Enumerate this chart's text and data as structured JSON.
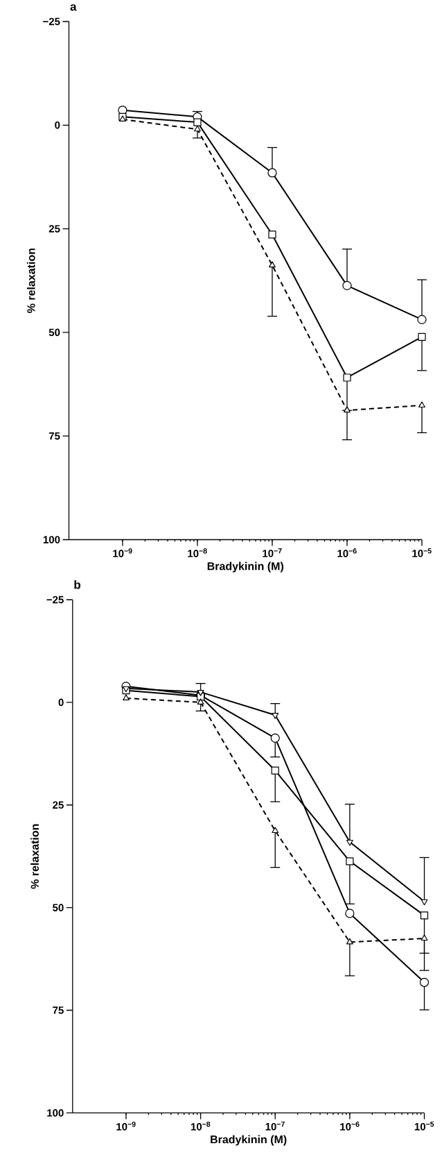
{
  "chart_data": [
    {
      "type": "line",
      "title": "a",
      "xlabel": "Bradykinin (M)",
      "ylabel": "% relaxation",
      "log": "x",
      "x": [
        1e-09,
        1e-08,
        1e-07,
        1e-06,
        1e-05
      ],
      "xlim": [
        1.92e-10,
        1e-05
      ],
      "xticks": [
        {
          "value": 1e-09,
          "label": "10$^{−9}$"
        },
        {
          "value": 1e-08,
          "label": "10$^{−8}$"
        },
        {
          "value": 1e-07,
          "label": "10$^{−7}$"
        },
        {
          "value": 1e-06,
          "label": "10$^{−6}$"
        },
        {
          "value": 1e-05,
          "label": "10$^{−5}$"
        }
      ],
      "ylim": [
        100,
        -25
      ],
      "yticks": [
        {
          "value": -25,
          "label": "−25"
        },
        0,
        25,
        50,
        75,
        100
      ],
      "series": [
        {
          "color": "#000000",
          "marker": "circle",
          "line_style": "solid",
          "values": [
            -3.6,
            -2.0,
            11.5,
            38.7,
            46.9
          ],
          "errors": [
            null,
            [
              -3.3,
              -2.0
            ],
            [
              5.4,
              11.5
            ],
            [
              29.9,
              38.7
            ],
            [
              37.3,
              46.9
            ]
          ]
        },
        {
          "color": "#000000",
          "marker": "square",
          "line_style": "solid",
          "values": [
            -2.0,
            -0.7,
            26.4,
            60.9,
            51.1
          ],
          "errors": [
            null,
            null,
            null,
            [
              60.9,
              68.8
            ],
            [
              51.1,
              59.2
            ]
          ]
        },
        {
          "color": "#000000",
          "marker": "triangle",
          "line_style": "dashed",
          "values": [
            -1.4,
            1.0,
            33.8,
            68.8,
            67.6
          ],
          "errors": [
            null,
            [
              1.0,
              3.1
            ],
            [
              33.8,
              46.1
            ],
            [
              68.8,
              75.9
            ],
            [
              67.6,
              74.2
            ]
          ]
        }
      ]
    },
    {
      "type": "line",
      "title": "b",
      "xlabel": "Bradykinin (M)",
      "ylabel": "% relaxation",
      "log": "x",
      "x": [
        1e-09,
        1e-08,
        1e-07,
        1e-06,
        1e-05
      ],
      "xlim": [
        1.92e-10,
        1e-05
      ],
      "xticks": [
        {
          "value": 1e-09,
          "label": "10$^{−9}$"
        },
        {
          "value": 1e-08,
          "label": "10$^{−8}$"
        },
        {
          "value": 1e-07,
          "label": "10$^{−7}$"
        },
        {
          "value": 1e-06,
          "label": "10$^{−6}$"
        },
        {
          "value": 1e-05,
          "label": "10$^{−5}$"
        }
      ],
      "ylim": [
        100,
        -25
      ],
      "yticks": [
        {
          "value": -25,
          "label": "−25"
        },
        0,
        25,
        50,
        75,
        100
      ],
      "series": [
        {
          "color": "#000000",
          "marker": "circle",
          "line_style": "solid",
          "values": [
            -3.9,
            -1.7,
            8.7,
            51.4,
            68.2
          ],
          "errors": [
            null,
            null,
            [
              8.7,
              13.3
            ],
            null,
            [
              68.2,
              74.9
            ]
          ]
        },
        {
          "color": "#000000",
          "marker": "square",
          "line_style": "solid",
          "values": [
            -2.9,
            -1.4,
            16.6,
            38.7,
            51.9
          ],
          "errors": [
            null,
            null,
            [
              16.6,
              24.2
            ],
            [
              38.7,
              49.1
            ],
            [
              51.9,
              61.1
            ]
          ]
        },
        {
          "color": "#000000",
          "marker": "triangle-down",
          "line_style": "solid",
          "values": [
            -3.4,
            -2.5,
            3.1,
            34.0,
            48.5
          ],
          "errors": [
            null,
            [
              -4.6,
              -2.5
            ],
            [
              0.3,
              3.1
            ],
            [
              24.8,
              34.0
            ],
            [
              37.8,
              48.5
            ]
          ]
        },
        {
          "color": "#000000",
          "marker": "triangle",
          "line_style": "dashed",
          "values": [
            -1.0,
            0.0,
            31.3,
            58.4,
            57.5
          ],
          "errors": [
            null,
            [
              0.0,
              2.1
            ],
            [
              31.3,
              40.2
            ],
            [
              58.4,
              66.6
            ],
            [
              57.5,
              65.3
            ]
          ]
        }
      ]
    }
  ]
}
